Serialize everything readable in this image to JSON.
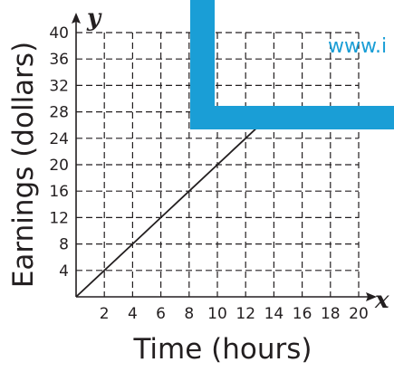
{
  "chart_data": {
    "type": "line",
    "xlabel": "Time (hours)",
    "ylabel": "Earnings (dollars)",
    "x_axis_letter": "x",
    "y_axis_letter": "y",
    "xlim": [
      0,
      20
    ],
    "ylim": [
      0,
      40
    ],
    "x_ticks": [
      2,
      4,
      6,
      8,
      10,
      12,
      14,
      16,
      18,
      20
    ],
    "y_ticks": [
      4,
      8,
      12,
      16,
      20,
      24,
      28,
      32,
      36,
      40
    ],
    "grid": true,
    "series": [
      {
        "x": [
          0,
          2,
          4,
          6,
          8,
          10,
          12,
          14
        ],
        "y": [
          0,
          4,
          8,
          12,
          16,
          20,
          24,
          28
        ]
      }
    ],
    "colors": {
      "line": "#231f20",
      "grid": "#231f20",
      "watermark": "#1a9ed6"
    }
  },
  "watermark": {
    "text": "www.i"
  }
}
